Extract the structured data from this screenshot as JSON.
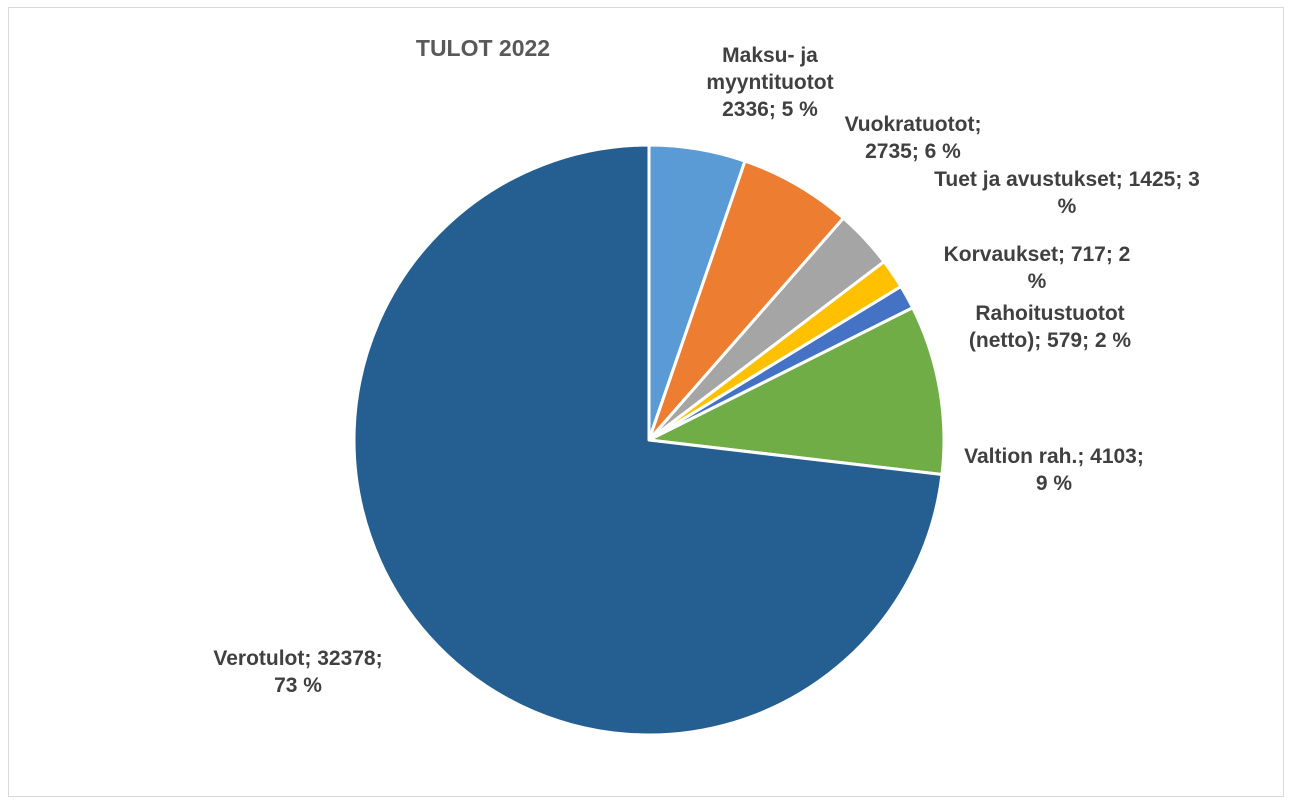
{
  "chart_data": {
    "type": "pie",
    "title": "TULOT 2022",
    "start_angle_deg": 0,
    "direction": "clockwise",
    "legend": "none",
    "slices": [
      {
        "name": "Maksu- ja myyntituotot",
        "value": 2336,
        "percent": 5,
        "color": "#5b9bd5",
        "label_lines": [
          "Maksu- ja",
          "myyntituotot",
          "2336; 5 %"
        ]
      },
      {
        "name": "Vuokratuotot",
        "value": 2735,
        "percent": 6,
        "color": "#ed7d31",
        "label_lines": [
          "Vuokratuotot;",
          "2735; 6 %"
        ]
      },
      {
        "name": "Tuet ja avustukset",
        "value": 1425,
        "percent": 3,
        "color": "#a5a5a5",
        "label_lines": [
          "Tuet ja avustukset; 1425; 3",
          "%"
        ]
      },
      {
        "name": "Korvaukset",
        "value": 717,
        "percent": 2,
        "color": "#ffc000",
        "label_lines": [
          "Korvaukset; 717; 2",
          "%"
        ]
      },
      {
        "name": "Rahoitustuotot (netto)",
        "value": 579,
        "percent": 2,
        "color": "#4472c4",
        "label_lines": [
          "Rahoitustuotot",
          "(netto); 579; 2 %"
        ]
      },
      {
        "name": "Valtion rah.",
        "value": 4103,
        "percent": 9,
        "color": "#70ad47",
        "label_lines": [
          "Valtion rah.; 4103;",
          "9 %"
        ]
      },
      {
        "name": "Verotulot",
        "value": 32378,
        "percent": 73,
        "color": "#255e91",
        "label_lines": [
          "Verotulot; 32378;",
          "73 %"
        ]
      }
    ]
  }
}
